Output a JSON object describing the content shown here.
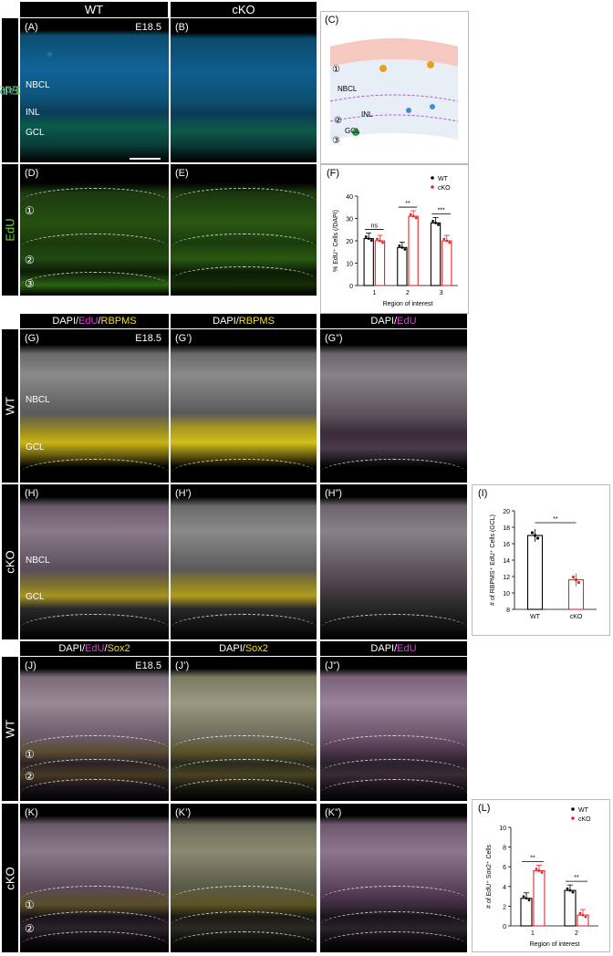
{
  "top": {
    "wt": "WT",
    "cko": "cKO"
  },
  "row1_side": {
    "text": "DAPI/EdU",
    "dapi": "DAPI",
    "edu": "/EdU"
  },
  "row2_side": {
    "text": "EdU"
  },
  "A": {
    "label": "(A)",
    "stage": "E18.5",
    "nbcl": "NBCL",
    "inl": "INL",
    "gcl": "GCL"
  },
  "B": {
    "label": "(B)"
  },
  "C": {
    "label": "(C)",
    "c1": "①",
    "c2": "②",
    "c3": "③",
    "nbcl": "NBCL",
    "inl": "INL",
    "gcl": "GCL"
  },
  "D": {
    "label": "(D)",
    "c1": "①",
    "c2": "②",
    "c3": "③"
  },
  "E": {
    "label": "(E)"
  },
  "F": {
    "label": "(F)"
  },
  "G_bar": {
    "dapi": "DAPI/",
    "edu": "EdU",
    "slash": "/",
    "rbpms": "RBPMS"
  },
  "Gp_bar": {
    "dapi": "DAPI/",
    "rbpms": "RBPMS"
  },
  "Gpp_bar": {
    "dapi": "DAPI/",
    "edu": "EdU"
  },
  "G": {
    "label": "(G)",
    "stage": "E18.5",
    "nbcl": "NBCL",
    "gcl": "GCL"
  },
  "Gp": {
    "label": "(G’)"
  },
  "Gpp": {
    "label": "(G”)"
  },
  "side_wt": "WT",
  "side_cko": "cKO",
  "H": {
    "label": "(H)",
    "nbcl": "NBCL",
    "gcl": "GCL"
  },
  "Hp": {
    "label": "(H’)"
  },
  "Hpp": {
    "label": "(H”)"
  },
  "I": {
    "label": "(I)"
  },
  "J_bar": {
    "dapi": "DAPI/",
    "edu": "EdU",
    "slash": "/",
    "sox": "Sox2"
  },
  "Jp_bar": {
    "dapi": "DAPI/",
    "sox": "Sox2"
  },
  "Jpp_bar": {
    "dapi": "DAPI/",
    "edu": "EdU"
  },
  "J": {
    "label": "(J)",
    "stage": "E18.5",
    "c1": "①",
    "c2": "②"
  },
  "Jp": {
    "label": "(J’)"
  },
  "Jpp": {
    "label": "(J”)"
  },
  "K": {
    "label": "(K)",
    "c1": "①",
    "c2": "②"
  },
  "Kp": {
    "label": "(K’)"
  },
  "Kpp": {
    "label": "(K”)"
  },
  "L": {
    "label": "(L)"
  },
  "colors": {
    "wt": "#000000",
    "cko": "#e8262a",
    "dapi": "#3a8fd4",
    "edu_green": "#7bd63a",
    "edu_magenta": "#e23ce2",
    "yellow": "#f0e020"
  },
  "chart_data": [
    {
      "id": "F",
      "type": "bar",
      "ylabel": "% EdU⁺ Cells (/DAPI)",
      "xlabel": "Region of interest",
      "categories": [
        "1",
        "2",
        "3"
      ],
      "yticks": [
        "0",
        "10",
        "20",
        "30",
        "40"
      ],
      "ylim": [
        0,
        40
      ],
      "series": [
        {
          "name": "WT",
          "values": [
            21,
            17,
            28
          ]
        },
        {
          "name": "cKO",
          "values": [
            20,
            31,
            20
          ]
        }
      ],
      "significance": [
        "ns",
        "**",
        "***"
      ],
      "legend": "top-right"
    },
    {
      "id": "I",
      "type": "bar",
      "ylabel": "# of RBPMS⁺ EdU⁺ Cells (GCL)",
      "categories": [
        "WT",
        "cKO"
      ],
      "yticks": [
        "8",
        "10",
        "12",
        "14",
        "16",
        "18",
        "20"
      ],
      "ylim": [
        8,
        20
      ],
      "values": [
        17,
        11.6
      ],
      "significance": [
        "**"
      ]
    },
    {
      "id": "L",
      "type": "bar",
      "ylabel": "# of EdU⁺ Sox2⁺ Cells",
      "xlabel": "Region of interest",
      "categories": [
        "1",
        "2"
      ],
      "yticks": [
        "0",
        "2",
        "4",
        "6",
        "8",
        "10"
      ],
      "ylim": [
        0,
        10
      ],
      "series": [
        {
          "name": "WT",
          "values": [
            2.8,
            3.6
          ]
        },
        {
          "name": "cKO",
          "values": [
            5.6,
            1.1
          ]
        }
      ],
      "significance": [
        "**",
        "**"
      ],
      "legend": "top-right"
    }
  ]
}
